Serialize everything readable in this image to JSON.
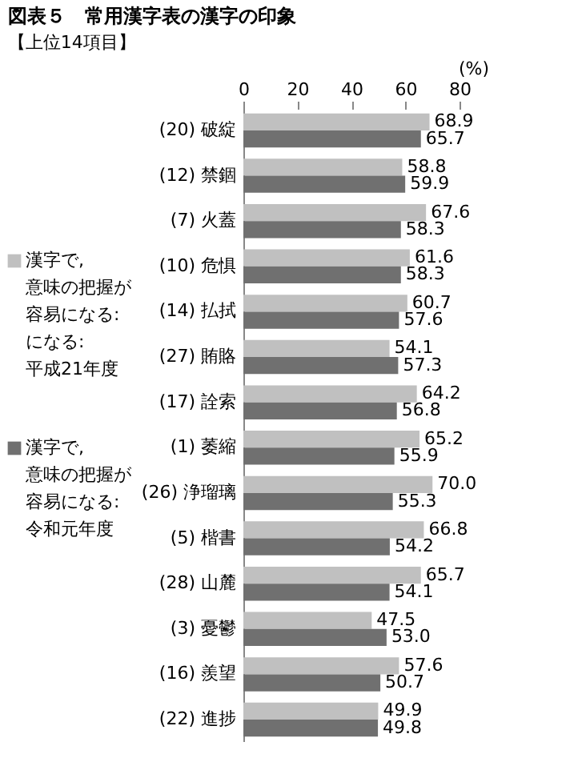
{
  "chart_data": {
    "type": "bar",
    "orientation": "horizontal",
    "title": "図表５　常用漢字表の漢字の印象",
    "subtitle": "【上位14項目】",
    "xlabel": "(%)",
    "categories": [
      "(20) 破綻",
      "(12) 禁錮",
      "(7) 火蓋",
      "(10) 危惧",
      "(14) 払拭",
      "(27) 賄賂",
      "(17) 詮索",
      "(1) 萎縮",
      "(26) 浄瑠璃",
      "(5) 楷書",
      "(28) 山麓",
      "(3) 憂鬱",
      "(16) 羨望",
      "(22) 進捗"
    ],
    "series": [
      {
        "name": "漢字で,意味の把握が容易になる:になる:平成21年度",
        "color": "#c0c0c0",
        "values": [
          68.9,
          58.8,
          67.6,
          61.6,
          60.7,
          54.1,
          64.2,
          65.2,
          70.0,
          66.8,
          65.7,
          47.5,
          57.6,
          49.9
        ],
        "value_labels": [
          "68.9",
          "58.8",
          "67.6",
          "61.6",
          "60.7",
          "54.1",
          "64.2",
          "65.2",
          "70.0",
          "66.8",
          "65.7",
          "47.5",
          "57.6",
          "49.9"
        ]
      },
      {
        "name": "漢字で,意味の把握が容易になる:令和元年度",
        "color": "#707070",
        "values": [
          65.7,
          59.9,
          58.3,
          58.3,
          57.6,
          57.3,
          56.8,
          55.9,
          55.3,
          54.2,
          54.1,
          53.0,
          50.7,
          49.8
        ],
        "value_labels": [
          "65.7",
          "59.9",
          "58.3",
          "58.3",
          "57.6",
          "57.3",
          "56.8",
          "55.9",
          "55.3",
          "54.2",
          "54.1",
          "53.0",
          "50.7",
          "49.8"
        ]
      }
    ],
    "xlim": [
      0,
      80
    ],
    "xticks": [
      0,
      20,
      40,
      60,
      80
    ],
    "legend": "left"
  }
}
